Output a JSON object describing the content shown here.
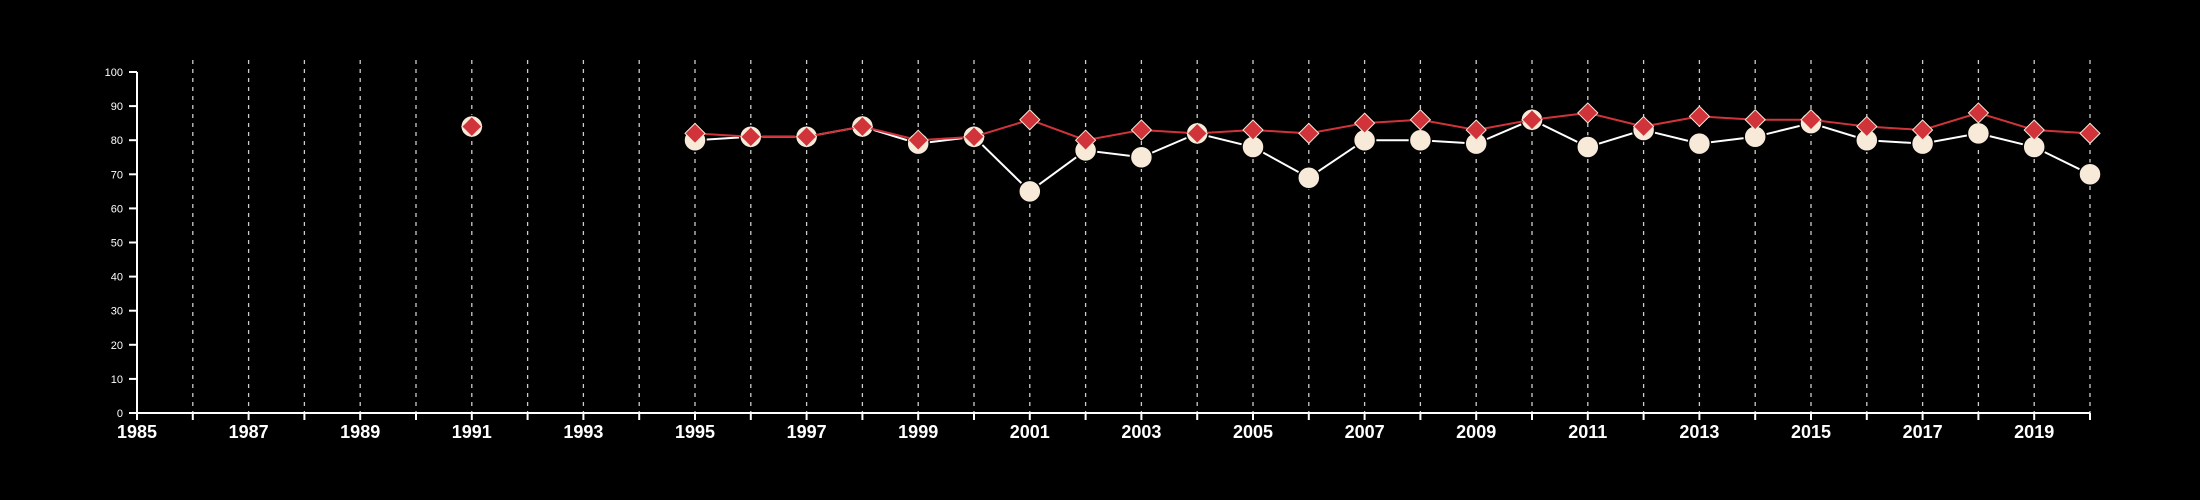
{
  "chart_data": {
    "type": "line",
    "title": "",
    "xlabel": "",
    "ylabel": "",
    "xlim": [
      1985,
      2020
    ],
    "ylim": [
      0,
      100
    ],
    "x_ticks": [
      "1985",
      "1987",
      "1989",
      "1991",
      "1993",
      "1995",
      "1997",
      "1999",
      "2001",
      "2003",
      "2005",
      "2007",
      "2009",
      "2011",
      "2013",
      "2015",
      "2017",
      "2019"
    ],
    "y_ticks": [
      "0",
      "10",
      "20",
      "30",
      "40",
      "50",
      "60",
      "70",
      "80",
      "90",
      "100"
    ],
    "grid": "vertical dashed lines at every year",
    "legend": "none",
    "series": [
      {
        "marker": "circle",
        "color": "#f8ead8",
        "line_color": "#ffffff",
        "points": [
          [
            1991,
            84
          ],
          [
            1995,
            80
          ],
          [
            1996,
            81
          ],
          [
            1997,
            81
          ],
          [
            1998,
            84
          ],
          [
            1999,
            79
          ],
          [
            2000,
            81
          ],
          [
            2001,
            65
          ],
          [
            2002,
            77
          ],
          [
            2003,
            75
          ],
          [
            2004,
            82
          ],
          [
            2005,
            78
          ],
          [
            2006,
            69
          ],
          [
            2007,
            80
          ],
          [
            2008,
            80
          ],
          [
            2009,
            79
          ],
          [
            2010,
            86
          ],
          [
            2011,
            78
          ],
          [
            2012,
            83
          ],
          [
            2013,
            79
          ],
          [
            2014,
            81
          ],
          [
            2015,
            85
          ],
          [
            2016,
            80
          ],
          [
            2017,
            79
          ],
          [
            2018,
            82
          ],
          [
            2019,
            78
          ],
          [
            2020,
            70
          ]
        ]
      },
      {
        "marker": "diamond",
        "color": "#d0343a",
        "line_color": "#d0343a",
        "points": [
          [
            1991,
            84
          ],
          [
            1995,
            82
          ],
          [
            1996,
            81
          ],
          [
            1997,
            81
          ],
          [
            1998,
            84
          ],
          [
            1999,
            80
          ],
          [
            2000,
            81
          ],
          [
            2001,
            86
          ],
          [
            2002,
            80
          ],
          [
            2003,
            83
          ],
          [
            2004,
            82
          ],
          [
            2005,
            83
          ],
          [
            2006,
            82
          ],
          [
            2007,
            85
          ],
          [
            2008,
            86
          ],
          [
            2009,
            83
          ],
          [
            2010,
            86
          ],
          [
            2011,
            88
          ],
          [
            2012,
            84
          ],
          [
            2013,
            87
          ],
          [
            2014,
            86
          ],
          [
            2015,
            86
          ],
          [
            2016,
            84
          ],
          [
            2017,
            83
          ],
          [
            2018,
            88
          ],
          [
            2019,
            83
          ],
          [
            2020,
            82
          ]
        ]
      }
    ]
  }
}
